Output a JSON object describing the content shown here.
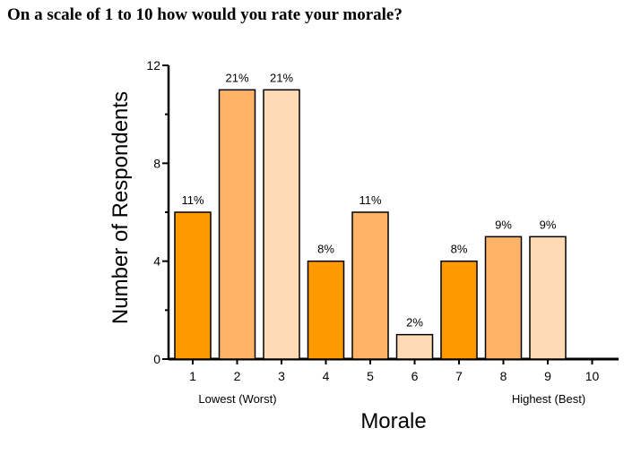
{
  "chart_data": {
    "type": "bar",
    "title": "On a scale of 1 to 10 how would you rate your morale?",
    "xlabel": "Morale",
    "ylabel": "Number of Respondents",
    "categories": [
      "1",
      "2",
      "3",
      "4",
      "5",
      "6",
      "7",
      "8",
      "9",
      "10"
    ],
    "values": [
      6,
      11,
      11,
      4,
      6,
      1,
      4,
      5,
      5,
      0
    ],
    "data_labels": [
      "11%",
      "21%",
      "21%",
      "8%",
      "11%",
      "2%",
      "8%",
      "9%",
      "9%",
      ""
    ],
    "bar_colors": [
      "#ff9900",
      "#ffb366",
      "#ffdab3",
      "#ff9900",
      "#ffb366",
      "#ffdab3",
      "#ff9900",
      "#ffb366",
      "#ffdab3",
      "#ff9900"
    ],
    "ylim": [
      0,
      12
    ],
    "yticks": [
      0,
      4,
      8,
      12
    ],
    "annotations": {
      "low": "Lowest (Worst)",
      "high": "Highest (Best)"
    },
    "grid": false,
    "legend": "none"
  }
}
